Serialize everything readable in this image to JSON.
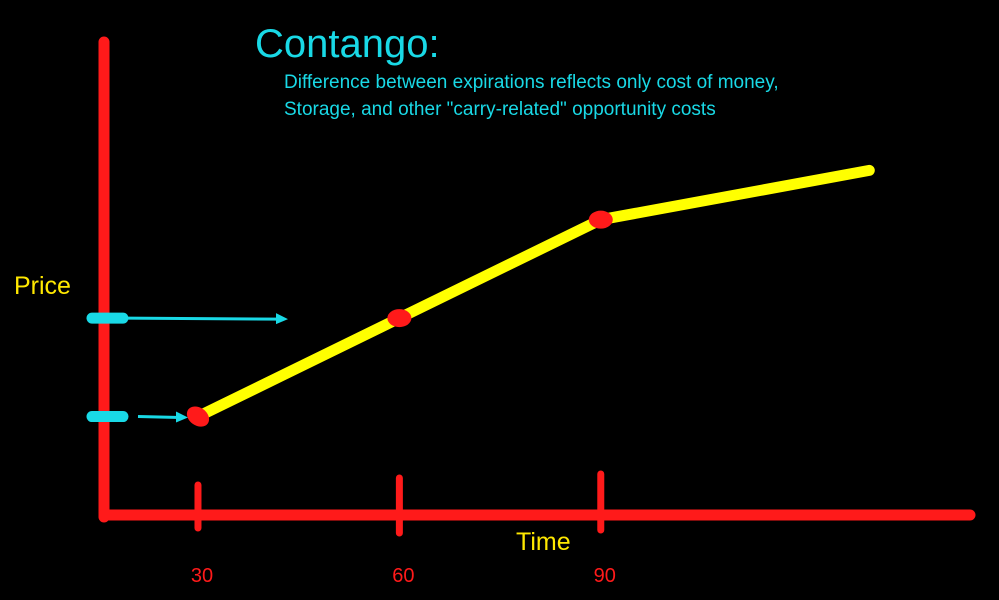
{
  "title": "Contango:",
  "subtitle_lines": [
    "Difference between expirations reflects only cost of money,",
    "Storage, and other \"carry-related\"  opportunity costs"
  ],
  "colors": {
    "background": "#000000",
    "axis": "#ff1a1a",
    "curve": "#ffff00",
    "markers": "#ff1a1a",
    "title_text": "#19d9e6",
    "axis_label_text": "#ffe800",
    "tick_label_text": "#ff1a1a",
    "price_marker": "#19d9e6"
  },
  "chart_data": {
    "type": "line",
    "title": "Contango:",
    "xlabel": "Time",
    "ylabel": "Price",
    "x_ticks": [
      "30",
      "60",
      "90"
    ],
    "series": [
      {
        "points": [
          {
            "x": 30,
            "y": 1.0
          },
          {
            "x": 60,
            "y": 2.0
          },
          {
            "x": 90,
            "y": 3.0
          },
          {
            "x": 130,
            "y": 3.5
          }
        ]
      }
    ],
    "highlighted_x": [
      30,
      60,
      90
    ],
    "y_price_markers": [
      {
        "y": 1.0,
        "arrow": "right"
      },
      {
        "y": 2.0,
        "arrow": "right"
      }
    ],
    "xlim": [
      16,
      145
    ],
    "ylim": [
      0,
      4.5
    ],
    "grid": false
  }
}
